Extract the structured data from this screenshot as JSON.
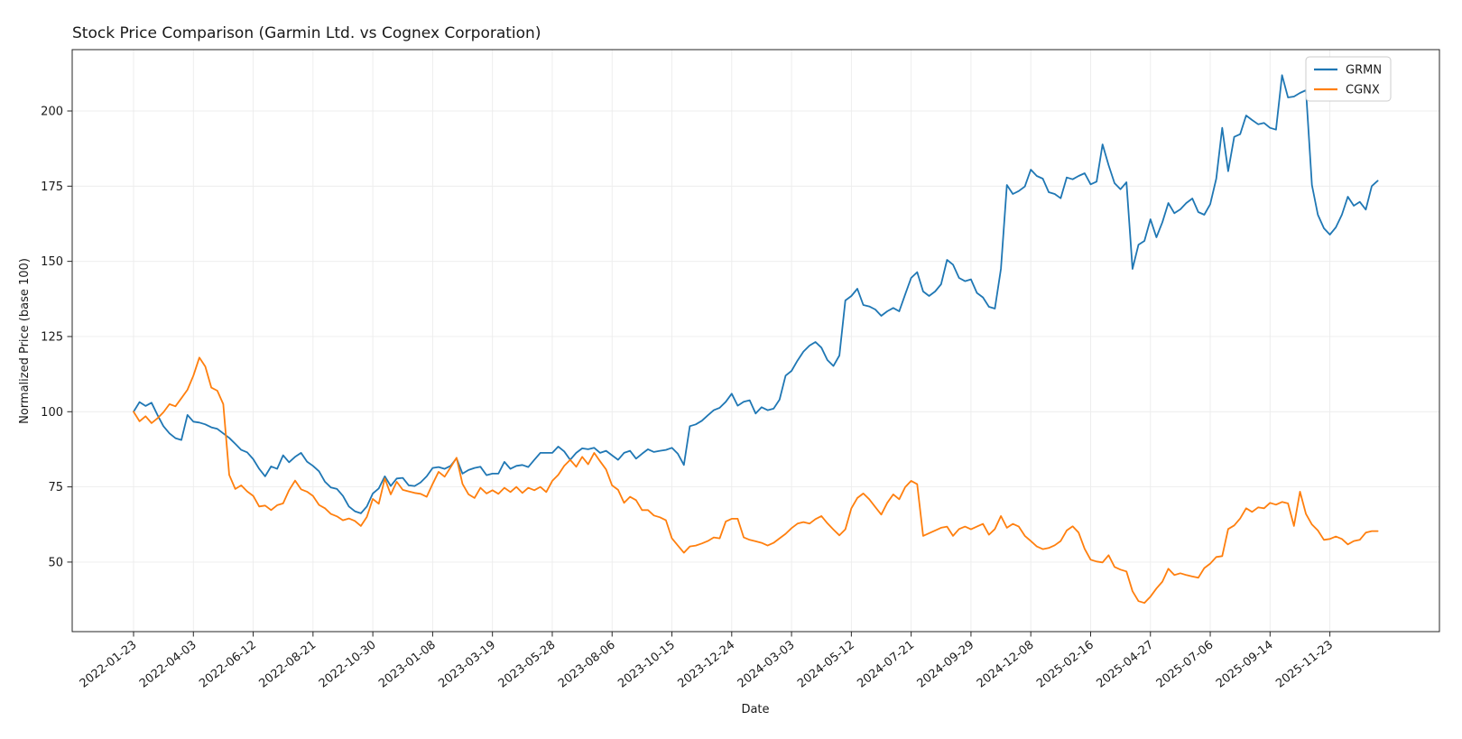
{
  "chart_data": {
    "type": "line",
    "title": "Stock Price Comparison (Garmin Ltd. vs Cognex Corporation)",
    "xlabel": "Date",
    "ylabel": "Normalized Price (base 100)",
    "legend_position": "upper right",
    "grid": true,
    "background_color": "#ffffff",
    "ylim": [
      27,
      220
    ],
    "y_ticks": [
      50,
      75,
      100,
      125,
      150,
      175,
      200
    ],
    "x_start_date": "2022-01-23",
    "x_step_days": 7,
    "n_points": 209,
    "x_tick_every_n_points": 10,
    "x_tick_labels": [
      "2022-01-23",
      "2022-04-03",
      "2022-06-12",
      "2022-08-21",
      "2022-10-30",
      "2023-01-08",
      "2023-03-19",
      "2023-05-28",
      "2023-08-06",
      "2023-10-15",
      "2023-12-24",
      "2024-03-03",
      "2024-05-12",
      "2024-07-21",
      "2024-09-29",
      "2024-12-08",
      "2025-02-16",
      "2025-04-27",
      "2025-07-06",
      "2025-09-14",
      "2025-11-23"
    ],
    "series": [
      {
        "name": "GRMN",
        "color": "#1f77b4",
        "values": [
          100,
          103.2,
          101.9,
          103.0,
          98.9,
          95.2,
          92.8,
          91.2,
          90.6,
          98.9,
          96.7,
          96.4,
          95.8,
          94.8,
          94.3,
          92.8,
          91.3,
          89.3,
          87.3,
          86.5,
          84.2,
          81.0,
          78.5,
          81.8,
          81.0,
          85.5,
          83.2,
          85.0,
          86.3,
          83.4,
          82.0,
          80.2,
          76.7,
          74.8,
          74.3,
          72.0,
          68.5,
          66.9,
          66.2,
          68.5,
          72.8,
          74.5,
          78.5,
          75.3,
          77.8,
          78.0,
          75.5,
          75.3,
          76.5,
          78.5,
          81.3,
          81.6,
          81.0,
          82.0,
          84.5,
          79.4,
          80.6,
          81.3,
          81.7,
          78.9,
          79.4,
          79.4,
          83.3,
          81.0,
          82.0,
          82.3,
          81.6,
          84.0,
          86.3,
          86.3,
          86.3,
          88.4,
          86.8,
          84.0,
          86.3,
          87.8,
          87.5,
          88.0,
          86.3,
          87.0,
          85.5,
          84.0,
          86.3,
          87.0,
          84.4,
          86.0,
          87.5,
          86.6,
          87.0,
          87.3,
          88.0,
          86.0,
          82.3,
          95.2,
          95.8,
          97.0,
          98.8,
          100.5,
          101.3,
          103.3,
          106.0,
          102.0,
          103.3,
          103.8,
          99.4,
          101.5,
          100.5,
          101.0,
          104.0,
          112.0,
          113.6,
          117.0,
          120.0,
          122.0,
          123.2,
          121.3,
          117.2,
          115.2,
          118.7,
          137.0,
          138.5,
          140.9,
          135.5,
          135.0,
          134.0,
          131.9,
          133.4,
          134.5,
          133.4,
          139.0,
          144.5,
          146.4,
          140.0,
          138.5,
          140.0,
          142.4,
          150.5,
          148.9,
          144.5,
          143.4,
          144.0,
          139.5,
          138.0,
          134.9,
          134.3,
          147.5,
          175.4,
          172.4,
          173.4,
          174.9,
          180.5,
          178.4,
          177.5,
          173.0,
          172.4,
          171.0,
          177.9,
          177.3,
          178.4,
          179.3,
          175.6,
          176.5,
          188.9,
          182.0,
          176.0,
          174.0,
          176.3,
          147.5,
          155.5,
          156.8,
          164.0,
          158.0,
          163.0,
          169.4,
          166.0,
          167.3,
          169.4,
          170.9,
          166.4,
          165.5,
          169.0,
          177.5,
          194.4,
          180.0,
          191.4,
          192.3,
          198.5,
          197.0,
          195.6,
          196.0,
          194.4,
          193.8,
          211.9,
          204.5,
          204.8,
          206.0,
          206.9,
          175.4,
          165.5,
          161.0,
          158.9,
          161.3,
          165.5,
          171.5,
          168.5,
          169.8,
          167.2,
          175.0,
          176.8
        ]
      },
      {
        "name": "CGNX",
        "color": "#ff7f0e",
        "values": [
          100,
          96.8,
          98.5,
          96.2,
          97.8,
          99.8,
          102.5,
          101.8,
          104.5,
          107.3,
          112.0,
          118.0,
          115.0,
          108.0,
          107.0,
          102.5,
          79.0,
          74.3,
          75.5,
          73.5,
          72.0,
          68.5,
          68.8,
          67.3,
          68.9,
          69.5,
          73.9,
          77.1,
          74.2,
          73.4,
          72.0,
          69.0,
          67.9,
          66.0,
          65.2,
          63.9,
          64.5,
          63.7,
          62.0,
          65.0,
          71.0,
          69.4,
          77.8,
          72.5,
          76.7,
          74.0,
          73.5,
          73.0,
          72.7,
          71.7,
          76.0,
          80.0,
          78.4,
          81.5,
          84.7,
          76.0,
          72.5,
          71.3,
          74.7,
          72.8,
          73.9,
          72.7,
          74.7,
          73.3,
          75.0,
          73.0,
          74.7,
          73.9,
          75.0,
          73.3,
          77.0,
          79.0,
          82.0,
          84.0,
          81.7,
          85.0,
          82.5,
          86.3,
          83.5,
          80.8,
          75.5,
          74.0,
          69.7,
          71.7,
          70.6,
          67.3,
          67.3,
          65.5,
          64.9,
          63.9,
          57.9,
          55.5,
          53.1,
          55.2,
          55.5,
          56.2,
          57.0,
          58.2,
          57.9,
          63.5,
          64.4,
          64.4,
          58.2,
          57.4,
          56.9,
          56.4,
          55.5,
          56.4,
          57.9,
          59.4,
          61.3,
          62.8,
          63.3,
          62.8,
          64.3,
          65.3,
          62.9,
          60.8,
          58.9,
          60.9,
          67.9,
          71.3,
          72.8,
          70.9,
          68.3,
          65.8,
          69.7,
          72.5,
          70.9,
          74.9,
          77.0,
          75.9,
          58.7,
          59.6,
          60.5,
          61.4,
          61.8,
          58.7,
          61.0,
          61.8,
          60.9,
          61.8,
          62.7,
          59.1,
          61.0,
          65.3,
          61.4,
          62.7,
          61.8,
          58.7,
          57.0,
          55.2,
          54.3,
          54.7,
          55.6,
          57.0,
          60.5,
          61.9,
          59.8,
          54.4,
          50.8,
          50.2,
          49.9,
          52.3,
          48.4,
          47.5,
          46.9,
          40.3,
          37.0,
          36.4,
          38.5,
          41.2,
          43.5,
          47.8,
          45.7,
          46.3,
          45.7,
          45.2,
          44.8,
          48.0,
          49.5,
          51.7,
          52.0,
          61.0,
          62.2,
          64.5,
          67.9,
          66.7,
          68.2,
          67.9,
          69.7,
          69.1,
          70.0,
          69.5,
          62.0,
          73.4,
          66.0,
          62.5,
          60.5,
          57.4,
          57.7,
          58.5,
          57.7,
          55.9,
          57.0,
          57.4,
          59.8,
          60.3,
          60.3
        ]
      }
    ]
  }
}
